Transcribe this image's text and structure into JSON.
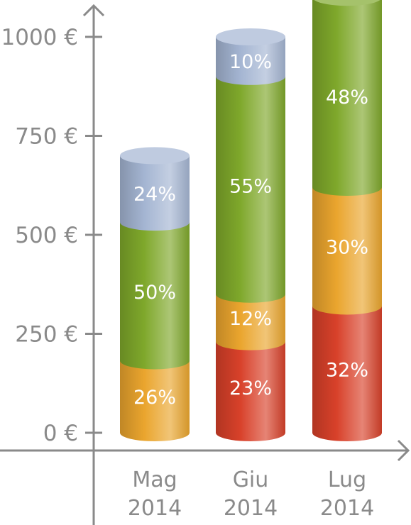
{
  "chart_data": {
    "type": "bar",
    "stacked": true,
    "style": "3d-cylinder",
    "categories": [
      "Mag\n2014",
      "Giu\n2014",
      "Lug\n2014"
    ],
    "totals": [
      700,
      1000,
      1000
    ],
    "ylim": [
      0,
      1000
    ],
    "yticks": [
      0,
      250,
      500,
      750,
      1000
    ],
    "ytick_labels": [
      "0 €",
      "250 €",
      "500 €",
      "750 €",
      "1000 €"
    ],
    "xtick_labels": [
      [
        "Mag",
        "2014"
      ],
      [
        "Giu",
        "2014"
      ],
      [
        "Lug",
        "2014"
      ]
    ],
    "grid": false,
    "legend": "none",
    "title": "",
    "xlabel": "",
    "ylabel": "",
    "series": [
      {
        "color": "#d8412a",
        "percents": [
          0,
          23,
          32
        ]
      },
      {
        "color": "#eaa52e",
        "percents": [
          26,
          12,
          30
        ]
      },
      {
        "color": "#7fa82b",
        "percents": [
          50,
          55,
          48
        ]
      },
      {
        "color": "#a4b5d2",
        "percents": [
          24,
          10,
          0
        ]
      }
    ],
    "segment_labels": [
      [
        "26%",
        "50%",
        "24%"
      ],
      [
        "23%",
        "12%",
        "55%",
        "10%"
      ],
      [
        "32%",
        "30%",
        "48%"
      ]
    ],
    "axis_color": "#8a8a8a"
  }
}
